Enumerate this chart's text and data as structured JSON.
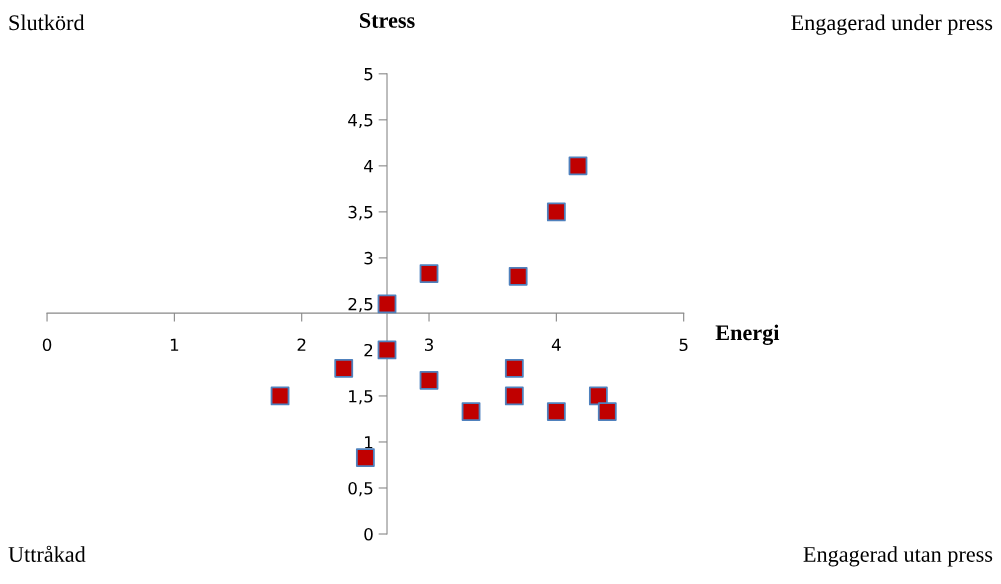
{
  "chart_data": {
    "type": "scatter",
    "ylabel": "Stress",
    "xlabel": "Energi",
    "marker": "square",
    "grid": false,
    "x": [
      4.17,
      4.0,
      3.0,
      3.7,
      2.67,
      2.67,
      2.33,
      1.83,
      3.0,
      3.33,
      3.67,
      3.67,
      4.0,
      4.33,
      4.4,
      2.5
    ],
    "series": [
      {
        "color": "#c00000",
        "values": [
          4.0,
          3.5,
          2.83,
          2.8,
          2.5,
          2.0,
          1.8,
          1.5,
          1.67,
          1.33,
          1.8,
          1.5,
          1.33,
          1.5,
          1.33,
          0.83
        ]
      }
    ],
    "xlim": [
      0,
      5
    ],
    "ylim": [
      0,
      5
    ],
    "xticks": [
      0,
      1,
      2,
      3,
      4,
      5
    ],
    "yticks": [
      0,
      {
        "value": 0.5,
        "label": "0,5"
      },
      1,
      {
        "value": 1.5,
        "label": "1,5"
      },
      2,
      {
        "value": 2.5,
        "label": "2,5"
      },
      3,
      {
        "value": 3.5,
        "label": "3,5"
      },
      4,
      {
        "value": 4.5,
        "label": "4,5"
      },
      5
    ],
    "annotations": [
      "Slutkörd",
      "Engagerad under press",
      "Uttråkad",
      "Engagerad utan press"
    ]
  }
}
